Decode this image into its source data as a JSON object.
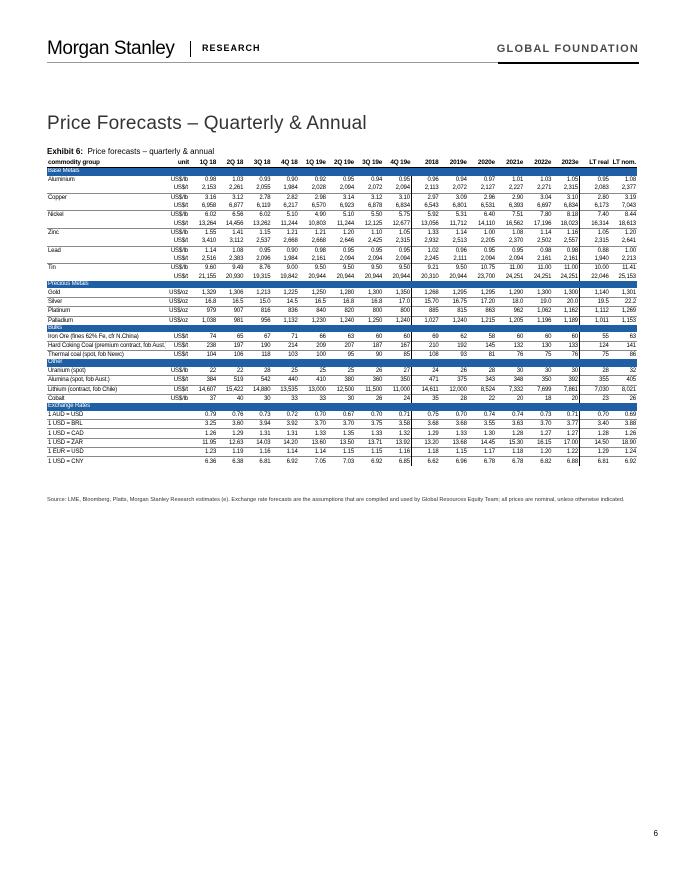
{
  "header": {
    "brand": "Morgan Stanley",
    "section": "RESEARCH",
    "series": "GLOBAL FOUNDATION"
  },
  "title": "Price Forecasts – Quarterly & Annual",
  "exhibit": {
    "label": "Exhibit 6:",
    "caption": "Price forecasts – quarterly & annual"
  },
  "columns": [
    "commodity group",
    "unit",
    "1Q 18",
    "2Q 18",
    "3Q 18",
    "4Q 18",
    "1Q 19e",
    "2Q 19e",
    "3Q 19e",
    "4Q 19e",
    "2018",
    "2019e",
    "2020e",
    "2021e",
    "2022e",
    "2023e",
    "LT real",
    "LT nom."
  ],
  "sections": [
    {
      "name": "Base Metals",
      "rows": [
        [
          "Aluminium",
          "US$/lb",
          "0.98",
          "1.03",
          "0.93",
          "0.90",
          "0.92",
          "0.95",
          "0.94",
          "0.95",
          "0.96",
          "0.94",
          "0.97",
          "1.01",
          "1.03",
          "1.05",
          "0.95",
          "1.08"
        ],
        [
          "",
          "US$/t",
          "2,153",
          "2,261",
          "2,055",
          "1,984",
          "2,028",
          "2,094",
          "2,072",
          "2,094",
          "2,113",
          "2,072",
          "2,127",
          "2,227",
          "2,271",
          "2,315",
          "2,083",
          "2,377"
        ],
        [
          "Copper",
          "US$/lb",
          "3.16",
          "3.12",
          "2.78",
          "2.82",
          "2.98",
          "3.14",
          "3.12",
          "3.10",
          "2.97",
          "3.09",
          "2.96",
          "2.90",
          "3.04",
          "3.10",
          "2.80",
          "3.19"
        ],
        [
          "",
          "US$/t",
          "6,958",
          "6,877",
          "6,119",
          "6,217",
          "6,570",
          "6,923",
          "6,878",
          "6,834",
          "6,543",
          "6,801",
          "6,531",
          "6,393",
          "6,697",
          "6,834",
          "6,173",
          "7,043"
        ],
        [
          "Nickel",
          "US$/lb",
          "6.02",
          "6.56",
          "6.02",
          "5.10",
          "4.90",
          "5.10",
          "5.50",
          "5.75",
          "5.92",
          "5.31",
          "6.40",
          "7.51",
          "7.80",
          "8.18",
          "7.40",
          "8.44"
        ],
        [
          "",
          "US$/t",
          "13,264",
          "14,456",
          "13,262",
          "11,244",
          "10,803",
          "11,244",
          "12,125",
          "12,677",
          "13,056",
          "11,712",
          "14,110",
          "16,562",
          "17,196",
          "18,023",
          "16,314",
          "18,613"
        ],
        [
          "Zinc",
          "US$/lb",
          "1.55",
          "1.41",
          "1.15",
          "1.21",
          "1.21",
          "1.20",
          "1.10",
          "1.05",
          "1.33",
          "1.14",
          "1.00",
          "1.08",
          "1.14",
          "1.16",
          "1.05",
          "1.20"
        ],
        [
          "",
          "US$/t",
          "3,410",
          "3,112",
          "2,537",
          "2,668",
          "2,668",
          "2,646",
          "2,425",
          "2,315",
          "2,932",
          "2,513",
          "2,205",
          "2,370",
          "2,502",
          "2,557",
          "2,315",
          "2,641"
        ],
        [
          "Lead",
          "US$/lb",
          "1.14",
          "1.08",
          "0.95",
          "0.90",
          "0.98",
          "0.95",
          "0.95",
          "0.95",
          "1.02",
          "0.96",
          "0.95",
          "0.95",
          "0.98",
          "0.98",
          "0.88",
          "1.00"
        ],
        [
          "",
          "US$/t",
          "2,516",
          "2,383",
          "2,096",
          "1,984",
          "2,161",
          "2,094",
          "2,094",
          "2,094",
          "2,245",
          "2,111",
          "2,094",
          "2,094",
          "2,161",
          "2,161",
          "1,940",
          "2,213"
        ],
        [
          "Tin",
          "US$/lb",
          "9.60",
          "9.49",
          "8.76",
          "9.00",
          "9.50",
          "9.50",
          "9.50",
          "9.50",
          "9.21",
          "9.50",
          "10.75",
          "11.00",
          "11.00",
          "11.00",
          "10.00",
          "11.41"
        ],
        [
          "",
          "US$/t",
          "21,155",
          "20,930",
          "19,315",
          "19,842",
          "20,944",
          "20,944",
          "20,944",
          "20,944",
          "20,310",
          "20,944",
          "23,700",
          "24,251",
          "24,251",
          "24,251",
          "22,046",
          "25,153"
        ]
      ]
    },
    {
      "name": "Precious Metals",
      "rows": [
        [
          "Gold",
          "US$/oz",
          "1,329",
          "1,306",
          "1,213",
          "1,225",
          "1,250",
          "1,280",
          "1,300",
          "1,350",
          "1,268",
          "1,295",
          "1,295",
          "1,290",
          "1,300",
          "1,300",
          "1,140",
          "1,301"
        ],
        [
          "Silver",
          "US$/oz",
          "16.8",
          "16.5",
          "15.0",
          "14.5",
          "16.5",
          "16.8",
          "16.8",
          "17.0",
          "15.70",
          "16.75",
          "17.20",
          "18.0",
          "19.0",
          "20.0",
          "19.5",
          "22.2"
        ],
        [
          "Platinum",
          "US$/oz",
          "979",
          "907",
          "816",
          "836",
          "840",
          "820",
          "800",
          "800",
          "885",
          "815",
          "863",
          "962",
          "1,062",
          "1,162",
          "1,112",
          "1,269"
        ],
        [
          "Palladium",
          "US$/oz",
          "1,038",
          "981",
          "956",
          "1,132",
          "1,230",
          "1,240",
          "1,250",
          "1,240",
          "1,027",
          "1,240",
          "1,215",
          "1,205",
          "1,196",
          "1,189",
          "1,011",
          "1,153"
        ]
      ]
    },
    {
      "name": "Bulks",
      "rows": [
        [
          "Iron Ore (fines 62% Fe, cfr N.China)",
          "US$/t",
          "74",
          "65",
          "67",
          "71",
          "66",
          "63",
          "60",
          "60",
          "69",
          "62",
          "58",
          "60",
          "60",
          "60",
          "55",
          "63"
        ],
        [
          "Hard Coking Coal (premium contract, fob Aust.)",
          "US$/t",
          "238",
          "197",
          "190",
          "214",
          "209",
          "207",
          "187",
          "167",
          "210",
          "192",
          "145",
          "132",
          "130",
          "133",
          "124",
          "141"
        ],
        [
          "Thermal coal (spot, fob Newc)",
          "US$/t",
          "104",
          "106",
          "118",
          "103",
          "100",
          "95",
          "90",
          "85",
          "108",
          "93",
          "81",
          "76",
          "75",
          "76",
          "75",
          "86"
        ]
      ]
    },
    {
      "name": "Other",
      "rows": [
        [
          "Uranium (spot)",
          "US$/lb",
          "22",
          "22",
          "28",
          "25",
          "25",
          "25",
          "26",
          "27",
          "24",
          "26",
          "28",
          "30",
          "30",
          "30",
          "28",
          "32"
        ],
        [
          "Alumina (spot, fob Aust.)",
          "US$/t",
          "384",
          "519",
          "542",
          "440",
          "410",
          "380",
          "360",
          "350",
          "471",
          "375",
          "343",
          "348",
          "350",
          "392",
          "355",
          "405"
        ],
        [
          "Lithium (contract, fob Chile)",
          "US$/t",
          "14,607",
          "15,422",
          "14,880",
          "13,535",
          "13,000",
          "12,500",
          "11,500",
          "11,000",
          "14,611",
          "12,000",
          "8,524",
          "7,332",
          "7,699",
          "7,861",
          "7,030",
          "8,021"
        ],
        [
          "Cobalt",
          "US$/lb",
          "37",
          "40",
          "30",
          "33",
          "33",
          "30",
          "26",
          "24",
          "35",
          "28",
          "22",
          "20",
          "18",
          "20",
          "23",
          "26"
        ]
      ]
    },
    {
      "name": "Exchange Rates",
      "rows": [
        [
          "1 AUD = USD",
          "",
          "0.79",
          "0.76",
          "0.73",
          "0.72",
          "0.70",
          "0.67",
          "0.70",
          "0.71",
          "0.75",
          "0.70",
          "0.74",
          "0.74",
          "0.73",
          "0.71",
          "0.70",
          "0.69"
        ],
        [
          "1 USD = BRL",
          "",
          "3.25",
          "3.60",
          "3.94",
          "3.92",
          "3.70",
          "3.70",
          "3.75",
          "3.58",
          "3.68",
          "3.68",
          "3.55",
          "3.63",
          "3.70",
          "3.77",
          "3.40",
          "3.88"
        ],
        [
          "1 USD = CAD",
          "",
          "1.26",
          "1.29",
          "1.31",
          "1.31",
          "1.33",
          "1.35",
          "1.33",
          "1.32",
          "1.29",
          "1.33",
          "1.30",
          "1.28",
          "1.27",
          "1.27",
          "1.28",
          "1.26"
        ],
        [
          "1 USD = ZAR",
          "",
          "11.95",
          "12.63",
          "14.03",
          "14.20",
          "13.60",
          "13.50",
          "13.71",
          "13.92",
          "13.20",
          "13.68",
          "14.45",
          "15.30",
          "16.15",
          "17.00",
          "14.50",
          "18.90"
        ],
        [
          "1 EUR = USD",
          "",
          "1.23",
          "1.19",
          "1.16",
          "1.14",
          "1.14",
          "1.15",
          "1.15",
          "1.16",
          "1.18",
          "1.15",
          "1.17",
          "1.18",
          "1.20",
          "1.22",
          "1.29",
          "1.24"
        ],
        [
          "1 USD = CNY",
          "",
          "6.36",
          "6.38",
          "6.81",
          "6.92",
          "7.05",
          "7.03",
          "6.92",
          "6.85",
          "6.62",
          "6.96",
          "6.78",
          "6.78",
          "6.82",
          "6.88",
          "6.81",
          "6.92"
        ]
      ]
    }
  ],
  "source": "Source: LME, Bloomberg, Platts, Morgan Stanley Research estimates (e). Exchange rate forecasts are the assumptions that are compiled and used by Global Resources Equity Team; all prices are nominal, unless otherwise indicated.",
  "page_number": "6",
  "colors": {
    "section_band": "#1f5fa6",
    "title_text": "#333333"
  }
}
